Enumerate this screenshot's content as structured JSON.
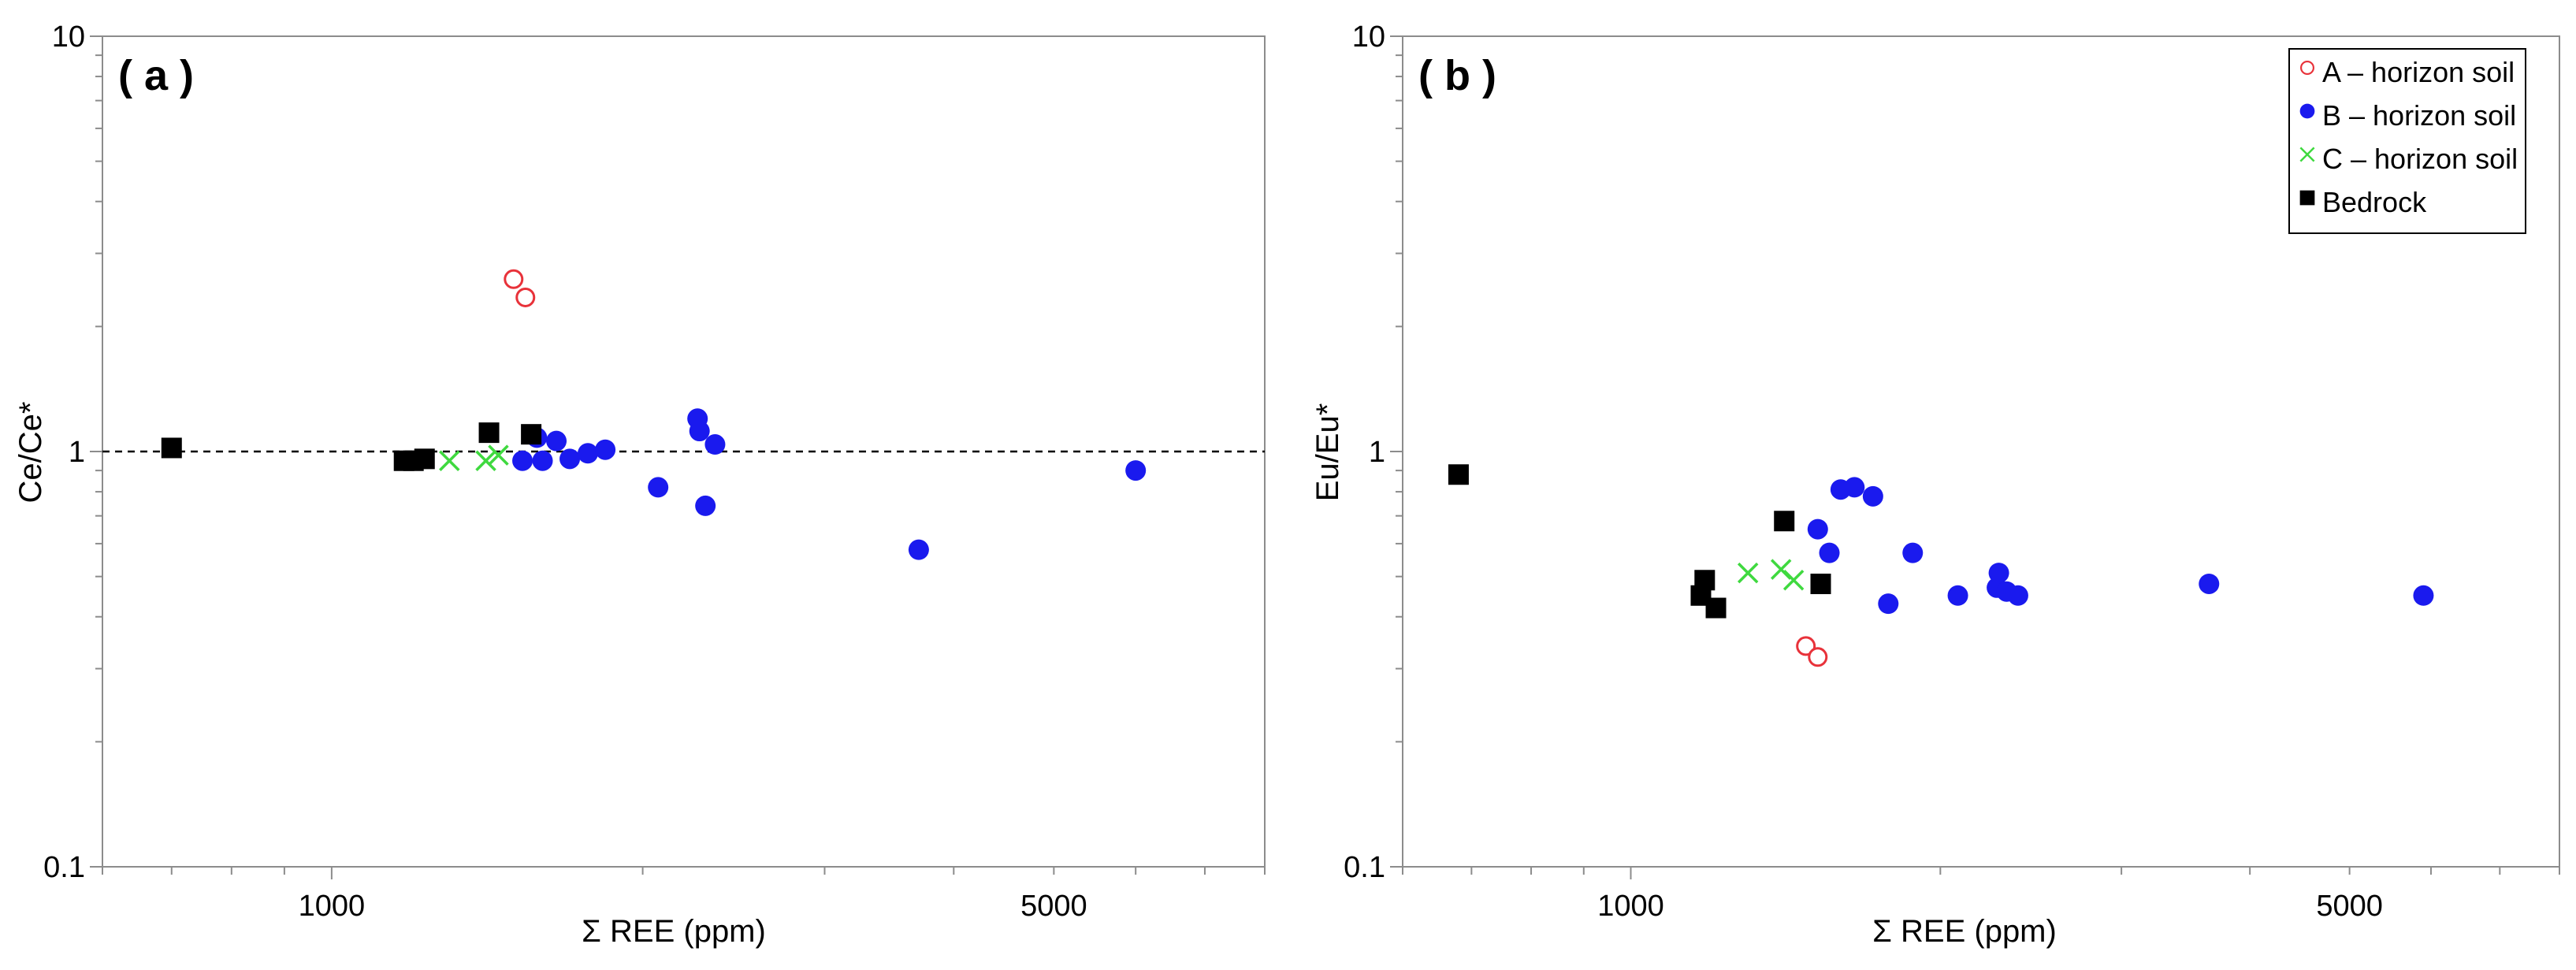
{
  "colors": {
    "a_horizon": "#e8323a",
    "b_horizon": "#1a1aee",
    "c_horizon": "#3fd93f",
    "bedrock": "#000000",
    "axis": "#8c8c8c"
  },
  "legend": [
    {
      "key": "a",
      "label": "A – horizon soil",
      "marker": "open-circle",
      "color": "#e8323a"
    },
    {
      "key": "b",
      "label": "B – horizon soil",
      "marker": "filled-circle",
      "color": "#1a1aee"
    },
    {
      "key": "c",
      "label": "C – horizon soil",
      "marker": "cross",
      "color": "#3fd93f"
    },
    {
      "key": "bedrock",
      "label": "Bedrock",
      "marker": "filled-square",
      "color": "#000000"
    }
  ],
  "chart_data": [
    {
      "type": "scatter",
      "panel_label": "( a )",
      "xlabel": "Σ REE (ppm)",
      "ylabel": "Ce/Ce*",
      "x_scale": "log",
      "y_scale": "log",
      "xlim": [
        600,
        8000
      ],
      "ylim": [
        0.1,
        10
      ],
      "x_tick_labels": [
        "1000",
        "5000"
      ],
      "x_ticks": [
        1000,
        5000
      ],
      "y_tick_labels": [
        "0.1",
        "1",
        "10"
      ],
      "y_ticks": [
        0.1,
        1,
        10
      ],
      "reference_line": {
        "y": 1,
        "style": "dashed"
      },
      "grid": false,
      "legend": false,
      "series": [
        {
          "key": "a",
          "name": "A – horizon soil",
          "x": [
            1500,
            1540
          ],
          "y": [
            2.6,
            2.35
          ]
        },
        {
          "key": "b",
          "name": "B – horizon soil",
          "x": [
            1530,
            1580,
            1600,
            1650,
            1700,
            1770,
            1840,
            2070,
            2260,
            2270,
            2300,
            2350,
            3700,
            6000
          ],
          "y": [
            0.95,
            1.08,
            0.95,
            1.06,
            0.96,
            0.99,
            1.01,
            0.82,
            1.2,
            1.12,
            0.74,
            1.04,
            0.58,
            0.9
          ]
        },
        {
          "key": "c",
          "name": "C – horizon soil",
          "x": [
            1300,
            1410,
            1450
          ],
          "y": [
            0.95,
            0.95,
            0.98
          ]
        },
        {
          "key": "bedrock",
          "name": "Bedrock",
          "x": [
            700,
            1175,
            1200,
            1230,
            1420,
            1560
          ],
          "y": [
            1.02,
            0.95,
            0.95,
            0.96,
            1.11,
            1.1
          ]
        }
      ]
    },
    {
      "type": "scatter",
      "panel_label": "( b )",
      "xlabel": "Σ REE (ppm)",
      "ylabel": "Eu/Eu*",
      "x_scale": "log",
      "y_scale": "log",
      "xlim": [
        600,
        8000
      ],
      "ylim": [
        0.1,
        10
      ],
      "x_tick_labels": [
        "1000",
        "5000"
      ],
      "x_ticks": [
        1000,
        5000
      ],
      "y_tick_labels": [
        "0.1",
        "1",
        "10"
      ],
      "y_ticks": [
        0.1,
        1,
        10
      ],
      "grid": false,
      "legend": "top-right",
      "series": [
        {
          "key": "a",
          "name": "A – horizon soil",
          "x": [
            1480,
            1520
          ],
          "y": [
            0.34,
            0.32
          ]
        },
        {
          "key": "b",
          "name": "B – horizon soil",
          "x": [
            1520,
            1560,
            1600,
            1650,
            1720,
            1780,
            1880,
            2080,
            2270,
            2280,
            2320,
            2380,
            3650,
            5900
          ],
          "y": [
            0.65,
            0.57,
            0.81,
            0.82,
            0.78,
            0.43,
            0.57,
            0.45,
            0.47,
            0.51,
            0.46,
            0.45,
            0.48,
            0.45
          ]
        },
        {
          "key": "c",
          "name": "C – horizon soil",
          "x": [
            1300,
            1400,
            1440
          ],
          "y": [
            0.51,
            0.52,
            0.49
          ]
        },
        {
          "key": "bedrock",
          "name": "Bedrock",
          "x": [
            680,
            1170,
            1180,
            1210,
            1410,
            1530
          ],
          "y": [
            0.88,
            0.45,
            0.49,
            0.42,
            0.68,
            0.48
          ]
        }
      ]
    }
  ]
}
